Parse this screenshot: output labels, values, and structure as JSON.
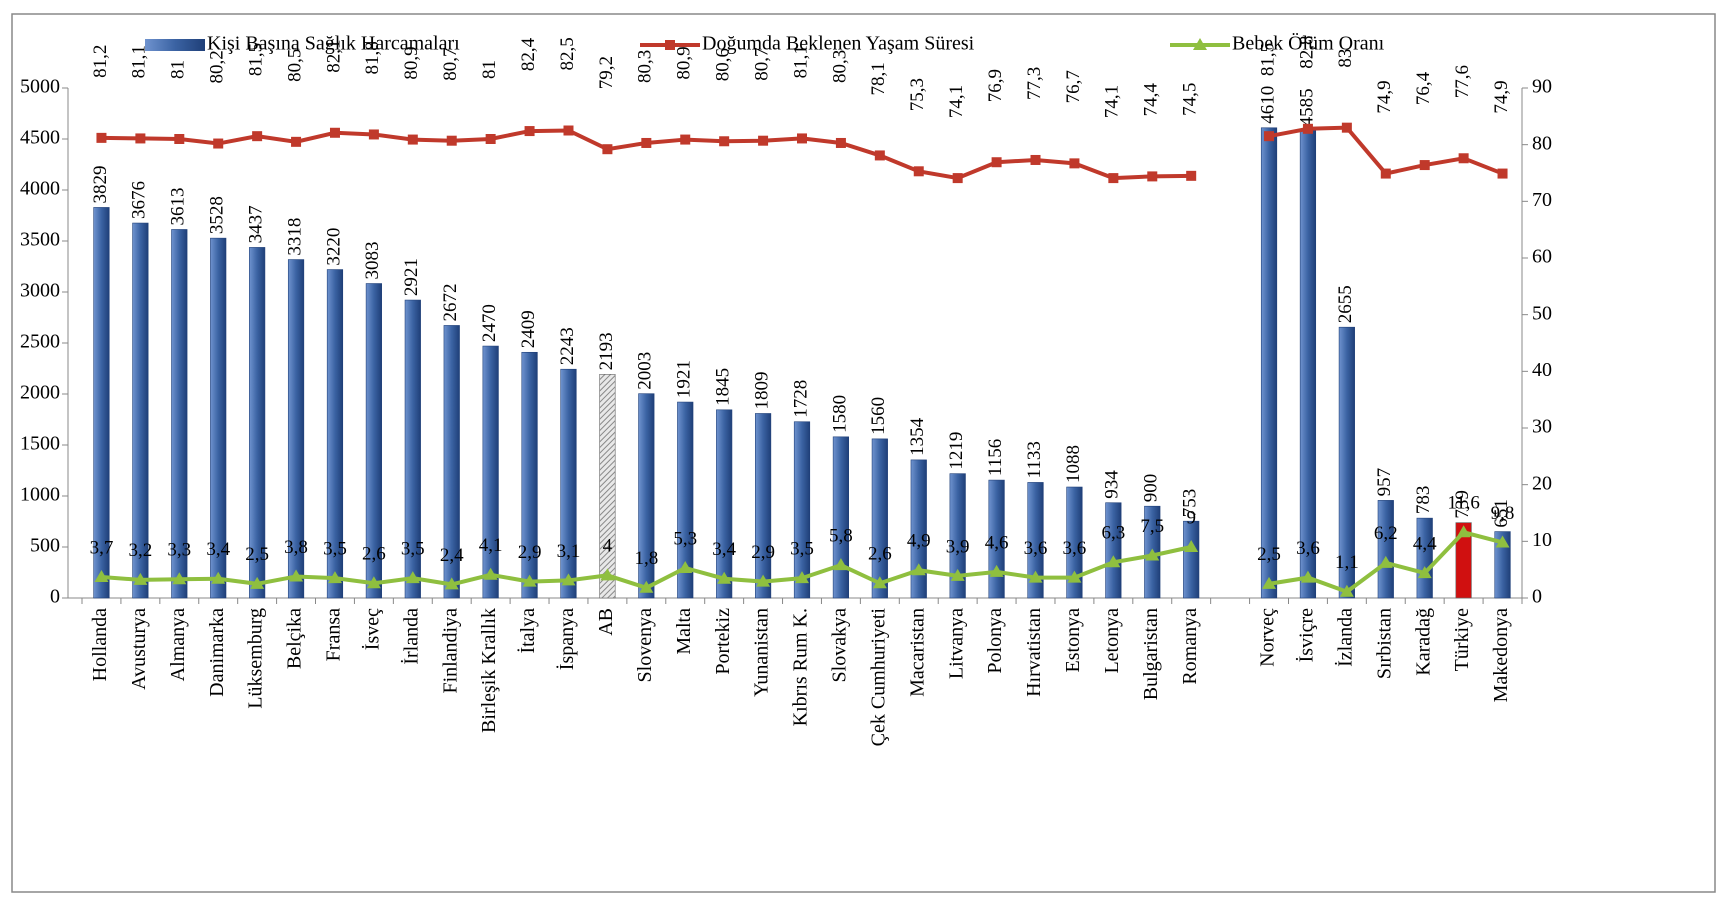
{
  "chart_data": {
    "type": "bar-line",
    "categories": [
      "Hollanda",
      "Avusturya",
      "Almanya",
      "Danimarka",
      "Lüksemburg",
      "Belçika",
      "Fransa",
      "İsveç",
      "İrlanda",
      "Finlandiya",
      "Birleşik Krallık",
      "İtalya",
      "İspanya",
      "AB",
      "Slovenya",
      "Malta",
      "Portekiz",
      "Yunanistan",
      "Kıbrıs Rum K.",
      "Slovakya",
      "Çek Cumhuriyeti",
      "Macaristan",
      "Litvanya",
      "Polonya",
      "Hırvatistan",
      "Estonya",
      "Letonya",
      "Bulgaristan",
      "Romanya",
      null,
      "Norveç",
      "İsviçre",
      "İzlanda",
      "Sırbistan",
      "Karadağ",
      "Türkiye",
      "Makedonya"
    ],
    "series": [
      {
        "name": "Kişi Başına Sağlık Harcamaları",
        "type": "bar",
        "color": "#3b63a3",
        "colors": [
          "#3b63a3",
          "#3b63a3",
          "#3b63a3",
          "#3b63a3",
          "#3b63a3",
          "#3b63a3",
          "#3b63a3",
          "#3b63a3",
          "#3b63a3",
          "#3b63a3",
          "#3b63a3",
          "#3b63a3",
          "#3b63a3",
          "#c8c8c8",
          "#3b63a3",
          "#3b63a3",
          "#3b63a3",
          "#3b63a3",
          "#3b63a3",
          "#3b63a3",
          "#3b63a3",
          "#3b63a3",
          "#3b63a3",
          "#3b63a3",
          "#3b63a3",
          "#3b63a3",
          "#3b63a3",
          "#3b63a3",
          "#3b63a3",
          null,
          "#3b63a3",
          "#3b63a3",
          "#3b63a3",
          "#3b63a3",
          "#3b63a3",
          "#d01010",
          "#3b63a3"
        ],
        "values": [
          3829,
          3676,
          3613,
          3528,
          3437,
          3318,
          3220,
          3083,
          2921,
          2672,
          2470,
          2409,
          2243,
          2193,
          2003,
          1921,
          1845,
          1809,
          1728,
          1580,
          1560,
          1354,
          1219,
          1156,
          1133,
          1088,
          934,
          900,
          753,
          null,
          4610,
          4585,
          2655,
          957,
          783,
          739,
          651
        ]
      },
      {
        "name": "Doğumda Beklenen Yaşam Süresi",
        "type": "line",
        "marker": "square",
        "axis": "y2",
        "color": "#c0392b",
        "values": [
          81.2,
          81.1,
          81,
          80.2,
          81.5,
          80.5,
          82.1,
          81.8,
          80.9,
          80.7,
          81,
          82.4,
          82.5,
          79.2,
          80.3,
          80.9,
          80.6,
          80.7,
          81.1,
          80.3,
          78.1,
          75.3,
          74.1,
          76.9,
          77.3,
          76.7,
          74.1,
          74.4,
          74.5,
          null,
          81.5,
          82.8,
          83,
          74.9,
          76.4,
          77.6,
          74.9
        ],
        "value_labels": [
          "81,2",
          "81,1",
          "81",
          "80,2",
          "81,5",
          "80,5",
          "82,1",
          "81,8",
          "80,9",
          "80,7",
          "81",
          "82,4",
          "82,5",
          "79,2",
          "80,3",
          "80,9",
          "80,6",
          "80,7",
          "81,1",
          "80,3",
          "78,1",
          "75,3",
          "74,1",
          "76,9",
          "77,3",
          "76,7",
          "74,1",
          "74,4",
          "74,5",
          null,
          "81,5",
          "82,8",
          "83",
          "74,9",
          "76,4",
          "77,6",
          "74,9"
        ]
      },
      {
        "name": "Bebek Ölüm Oranı",
        "type": "line",
        "marker": "triangle",
        "axis": "y2",
        "color": "#8fbf3f",
        "values": [
          3.7,
          3.2,
          3.3,
          3.4,
          2.5,
          3.8,
          3.5,
          2.6,
          3.5,
          2.4,
          4.1,
          2.9,
          3.1,
          4,
          1.8,
          5.3,
          3.4,
          2.9,
          3.5,
          5.8,
          2.6,
          4.9,
          3.9,
          4.6,
          3.6,
          3.6,
          6.3,
          7.5,
          9,
          null,
          2.5,
          3.6,
          1.1,
          6.2,
          4.4,
          11.6,
          9.8
        ],
        "value_labels": [
          "3,7",
          "3,2",
          "3,3",
          "3,4",
          "2,5",
          "3,8",
          "3,5",
          "2,6",
          "3,5",
          "2,4",
          "4,1",
          "2,9",
          "3,1",
          "4",
          "1,8",
          "5,3",
          "3,4",
          "2,9",
          "3,5",
          "5,8",
          "2,6",
          "4,9",
          "3,9",
          "4,6",
          "3,6",
          "3,6",
          "6,3",
          "7,5",
          "9",
          null,
          "2,5",
          "3,6",
          "1,1",
          "6,2",
          "4,4",
          "11,6",
          "9,8"
        ]
      }
    ],
    "ylim": [
      0,
      5000
    ],
    "yticks": [
      0,
      500,
      1000,
      1500,
      2000,
      2500,
      3000,
      3500,
      4000,
      4500,
      5000
    ],
    "y2lim": [
      0,
      90
    ],
    "y2ticks": [
      0,
      10,
      20,
      30,
      40,
      50,
      60,
      70,
      80,
      90
    ],
    "legend": "top"
  }
}
